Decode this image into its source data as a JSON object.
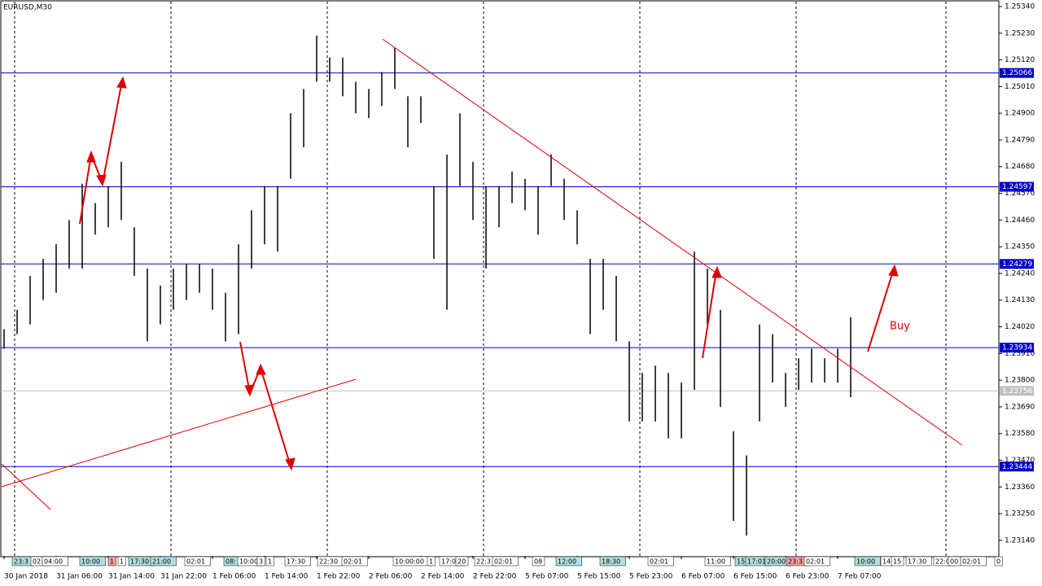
{
  "chart_data": {
    "type": "ohlc",
    "title": "EURUSD,M30",
    "annotation": "Buy",
    "color": "#000000",
    "categories": [
      "30 Jan 2018",
      null,
      null,
      null,
      "31 Jan 06:00",
      null,
      null,
      null,
      "31 Jan 14:00",
      null,
      null,
      null,
      "31 Jan 22:00",
      null,
      null,
      null,
      "1 Feb 06:00",
      null,
      null,
      null,
      "1 Feb 14:00",
      null,
      null,
      null,
      "1 Feb 22:00",
      null,
      null,
      null,
      "2 Feb 06:00",
      null,
      null,
      null,
      "2 Feb 14:00",
      null,
      null,
      null,
      "2 Feb 22:00",
      null,
      null,
      null,
      "5 Feb 07:00",
      null,
      null,
      null,
      "5 Feb 15:00",
      null,
      null,
      null,
      "5 Feb 23:00",
      null,
      null,
      null,
      "6 Feb 07:00",
      null,
      null,
      null,
      "6 Feb 15:00",
      null,
      null,
      null,
      "6 Feb 23:00",
      null,
      null,
      null,
      "7 Feb 07:00",
      null
    ],
    "high": [
      1.2401,
      1.2409,
      1.2423,
      1.243,
      1.2436,
      1.2446,
      1.2461,
      1.2453,
      1.246,
      1.247,
      1.2443,
      1.2426,
      1.2419,
      1.2426,
      1.2428,
      1.2428,
      1.2426,
      1.2416,
      1.2436,
      1.245,
      1.246,
      1.246,
      1.249,
      1.25,
      1.2522,
      1.2513,
      1.2513,
      1.2503,
      1.25,
      1.2507,
      1.2517,
      1.2497,
      1.2497,
      1.246,
      1.2473,
      1.249,
      1.247,
      1.246,
      1.246,
      1.2466,
      1.2463,
      1.246,
      1.2473,
      1.2463,
      1.245,
      1.243,
      1.243,
      1.2423,
      1.2396,
      1.2383,
      1.2386,
      1.2383,
      1.2379,
      1.2433,
      1.2426,
      1.2409,
      1.2359,
      1.2349,
      1.2403,
      1.2399,
      1.2383,
      1.2389,
      1.2393,
      1.2389,
      1.2393,
      1.2406
    ],
    "low": [
      1.2393,
      1.2399,
      1.2403,
      1.2413,
      1.2416,
      1.2426,
      1.2426,
      1.244,
      1.2443,
      1.2446,
      1.2423,
      1.2396,
      1.2403,
      1.2409,
      1.2413,
      1.2416,
      1.2409,
      1.2396,
      1.2399,
      1.2426,
      1.2436,
      1.2433,
      1.2463,
      1.2476,
      1.2503,
      1.2503,
      1.2497,
      1.249,
      1.2488,
      1.2493,
      1.25,
      1.2476,
      1.2486,
      1.243,
      1.2409,
      1.246,
      1.2446,
      1.2426,
      1.2443,
      1.2453,
      1.245,
      1.244,
      1.246,
      1.2446,
      1.2436,
      1.2399,
      1.2409,
      1.2396,
      1.2363,
      1.2363,
      1.2363,
      1.2356,
      1.2356,
      1.2376,
      1.2403,
      1.2369,
      1.2322,
      1.2316,
      1.2363,
      1.2379,
      1.2369,
      1.2376,
      1.2379,
      1.2379,
      1.2379,
      1.2373
    ],
    "ylim": [
      1.23076,
      1.2536
    ],
    "yticks": [
      {
        "value": 1.2534,
        "label": "1.25340"
      },
      {
        "value": 1.2523,
        "label": "1.25230"
      },
      {
        "value": 1.2512,
        "label": "1.25120"
      },
      {
        "value": 1.2501,
        "label": "1.25010"
      },
      {
        "value": 1.249,
        "label": "1.24900"
      },
      {
        "value": 1.2479,
        "label": "1.24790"
      },
      {
        "value": 1.2468,
        "label": "1.24680"
      },
      {
        "value": 1.2457,
        "label": "1.24570"
      },
      {
        "value": 1.2446,
        "label": "1.24460"
      },
      {
        "value": 1.2435,
        "label": "1.24350"
      },
      {
        "value": 1.2424,
        "label": "1.24240"
      },
      {
        "value": 1.2413,
        "label": "1.24130"
      },
      {
        "value": 1.2402,
        "label": "1.24020"
      },
      {
        "value": 1.2391,
        "label": "1.23910"
      },
      {
        "value": 1.238,
        "label": "1.23800"
      },
      {
        "value": 1.2369,
        "label": "1.23690"
      },
      {
        "value": 1.2358,
        "label": "1.23580"
      },
      {
        "value": 1.2347,
        "label": "1.23470"
      },
      {
        "value": 1.2336,
        "label": "1.23360"
      },
      {
        "value": 1.2325,
        "label": "1.23250"
      },
      {
        "value": 1.2314,
        "label": "1.23140"
      }
    ],
    "levels": [
      1.25066,
      1.24597,
      1.24279,
      1.23934,
      1.23444
    ],
    "level_color": "#0000cc",
    "bid": 1.23756,
    "bid_color": "#c0c0c0",
    "events": [
      {
        "label": "23:3",
        "color": "#aee0e0"
      },
      {
        "label": "02:",
        "color": "#ffffff"
      },
      {
        "label": "04:00",
        "color": "#ffffff"
      },
      {
        "label": "10:00",
        "color": "#aee0e0"
      },
      {
        "label": "1",
        "color": "#f4a0a0"
      },
      {
        "label": "1",
        "color": "#ffffff"
      },
      {
        "label": "17:30",
        "color": "#aee0e0"
      },
      {
        "label": "21:00",
        "color": "#aee0e0"
      },
      {
        "label": "02:01",
        "color": "#ffffff"
      },
      {
        "label": "08:",
        "color": "#aee0e0"
      },
      {
        "label": "10:00",
        "color": "#ffffff"
      },
      {
        "label": "3",
        "color": "#ffffff"
      },
      {
        "label": "1",
        "color": "#ffffff"
      },
      {
        "label": "17:30",
        "color": "#ffffff"
      },
      {
        "label": "22:30",
        "color": "#ffffff"
      },
      {
        "label": "02:01",
        "color": "#ffffff"
      },
      {
        "label": "10:00:00",
        "color": "#ffffff"
      },
      {
        "label": "1",
        "color": "#ffffff"
      },
      {
        "label": "17:00",
        "color": "#ffffff"
      },
      {
        "label": "20",
        "color": "#ffffff"
      },
      {
        "label": "22:3",
        "color": "#ffffff"
      },
      {
        "label": "02:01",
        "color": "#ffffff"
      },
      {
        "label": "08",
        "color": "#ffffff"
      },
      {
        "label": "12:00",
        "color": "#aee0e0"
      },
      {
        "label": "18:30",
        "color": "#aee0e0"
      },
      {
        "label": "02:01",
        "color": "#ffffff"
      },
      {
        "label": "11:00",
        "color": "#ffffff"
      },
      {
        "label": "15",
        "color": "#aee0e0"
      },
      {
        "label": "17:01",
        "color": "#aee0e0"
      },
      {
        "label": "20:00",
        "color": "#aee0e0"
      },
      {
        "label": "23:3",
        "color": "#f4a0a0"
      },
      {
        "label": "02:01",
        "color": "#ffffff"
      },
      {
        "label": "10:00",
        "color": "#aee0e0"
      },
      {
        "label": "14",
        "color": "#ffffff"
      },
      {
        "label": "15",
        "color": "#ffffff"
      },
      {
        "label": "17:30",
        "color": "#ffffff"
      },
      {
        "label": "22:0",
        "color": "#ffffff"
      },
      {
        "label": "00",
        "color": "#ffffff"
      },
      {
        "label": "02:01",
        "color": "#ffffff"
      },
      {
        "label": "0",
        "color": "#ffffff"
      }
    ]
  }
}
